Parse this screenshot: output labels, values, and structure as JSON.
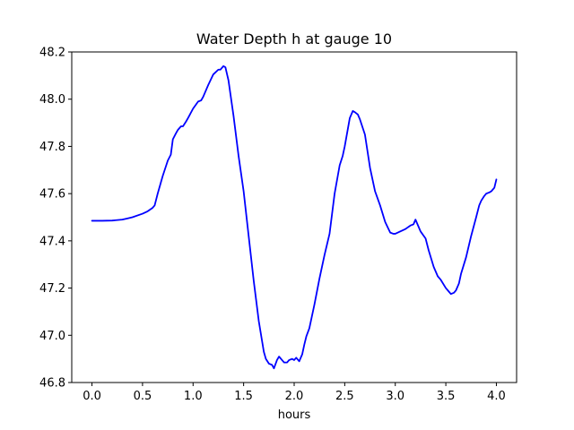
{
  "chart_data": {
    "type": "line",
    "title": "Water Depth h at gauge 10",
    "xlabel": "hours",
    "ylabel": "",
    "xlim": [
      -0.2,
      4.2
    ],
    "ylim": [
      46.8,
      48.2
    ],
    "xticks": [
      0.0,
      0.5,
      1.0,
      1.5,
      2.0,
      2.5,
      3.0,
      3.5,
      4.0
    ],
    "xtick_labels": [
      "0.0",
      "0.5",
      "1.0",
      "1.5",
      "2.0",
      "2.5",
      "3.0",
      "3.5",
      "4.0"
    ],
    "yticks": [
      46.8,
      47.0,
      47.2,
      47.4,
      47.6,
      47.8,
      48.0,
      48.2
    ],
    "ytick_labels": [
      "46.8",
      "47.0",
      "47.2",
      "47.4",
      "47.6",
      "47.8",
      "48.0",
      "48.2"
    ],
    "grid": false,
    "series": [
      {
        "color": "#0000ff",
        "x": [
          0.0,
          0.1,
          0.2,
          0.3,
          0.35,
          0.4,
          0.5,
          0.55,
          0.6,
          0.62,
          0.65,
          0.7,
          0.75,
          0.78,
          0.8,
          0.83,
          0.85,
          0.88,
          0.9,
          0.93,
          0.95,
          1.0,
          1.05,
          1.08,
          1.1,
          1.15,
          1.2,
          1.25,
          1.27,
          1.3,
          1.32,
          1.35,
          1.4,
          1.45,
          1.5,
          1.55,
          1.6,
          1.65,
          1.7,
          1.72,
          1.75,
          1.78,
          1.8,
          1.83,
          1.85,
          1.88,
          1.9,
          1.93,
          1.95,
          1.98,
          2.0,
          2.02,
          2.05,
          2.08,
          2.1,
          2.12,
          2.15,
          2.2,
          2.25,
          2.3,
          2.35,
          2.4,
          2.45,
          2.48,
          2.5,
          2.55,
          2.58,
          2.6,
          2.63,
          2.65,
          2.7,
          2.75,
          2.8,
          2.85,
          2.9,
          2.95,
          2.98,
          3.0,
          3.05,
          3.1,
          3.15,
          3.18,
          3.2,
          3.25,
          3.3,
          3.33,
          3.38,
          3.42,
          3.45,
          3.5,
          3.53,
          3.55,
          3.58,
          3.6,
          3.63,
          3.65,
          3.7,
          3.75,
          3.8,
          3.83,
          3.85,
          3.88,
          3.9,
          3.93,
          3.95,
          3.98,
          4.0
        ],
        "y": [
          47.485,
          47.485,
          47.486,
          47.49,
          47.495,
          47.5,
          47.515,
          47.525,
          47.54,
          47.55,
          47.6,
          47.675,
          47.74,
          47.765,
          47.83,
          47.855,
          47.87,
          47.885,
          47.885,
          47.905,
          47.92,
          47.96,
          47.99,
          47.995,
          48.01,
          48.06,
          48.105,
          48.125,
          48.125,
          48.14,
          48.135,
          48.08,
          47.93,
          47.76,
          47.61,
          47.42,
          47.23,
          47.06,
          46.93,
          46.9,
          46.88,
          46.875,
          46.86,
          46.895,
          46.91,
          46.895,
          46.885,
          46.885,
          46.895,
          46.9,
          46.895,
          46.905,
          46.89,
          46.92,
          46.96,
          46.995,
          47.03,
          47.13,
          47.24,
          47.34,
          47.43,
          47.6,
          47.72,
          47.76,
          47.8,
          47.92,
          47.95,
          47.945,
          47.935,
          47.915,
          47.85,
          47.71,
          47.61,
          47.55,
          47.48,
          47.435,
          47.43,
          47.43,
          47.44,
          47.45,
          47.465,
          47.47,
          47.49,
          47.44,
          47.41,
          47.36,
          47.29,
          47.25,
          47.235,
          47.2,
          47.185,
          47.175,
          47.18,
          47.19,
          47.22,
          47.26,
          47.33,
          47.42,
          47.5,
          47.55,
          47.57,
          47.59,
          47.6,
          47.605,
          47.61,
          47.625,
          47.66
        ]
      }
    ]
  }
}
